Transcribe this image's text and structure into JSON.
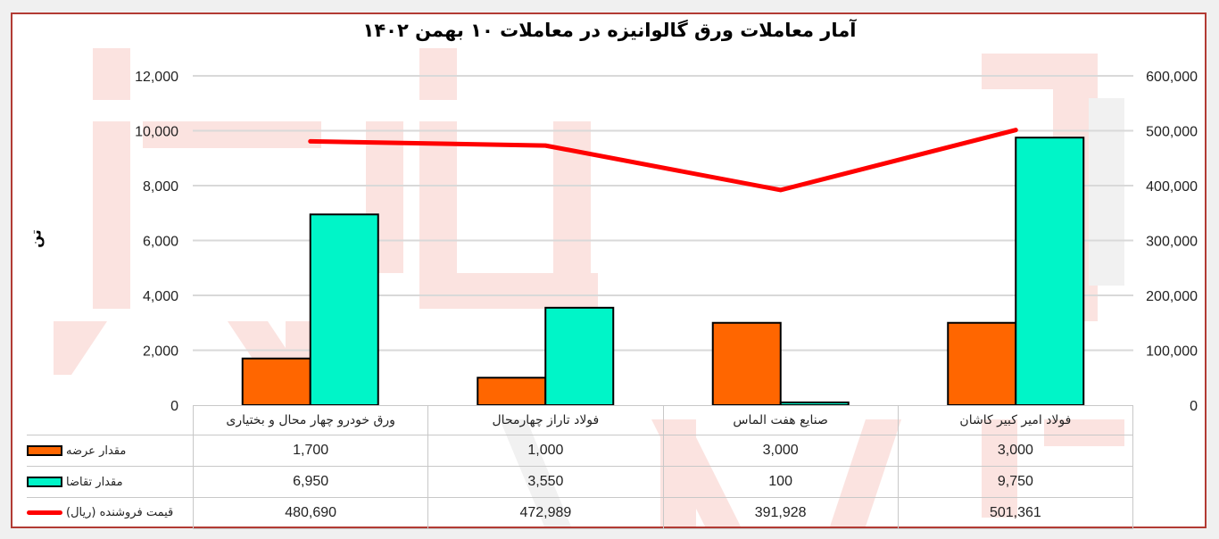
{
  "title": "آمار معاملات ورق گالوانیزه در معاملات ۱۰ بهمن ۱۴۰۲",
  "y_axis_label": "تن",
  "colors": {
    "supply": "#ff6600",
    "demand": "#00f5c8",
    "price": "#ff0000",
    "frame_border": "#b23b34",
    "gridline": "#d9d9d9"
  },
  "legend": [
    {
      "key": "supply",
      "label": "مقدار عرضه",
      "icon": "orange-bar-swatch"
    },
    {
      "key": "demand",
      "label": "مقدار تقاضا",
      "icon": "teal-bar-swatch"
    },
    {
      "key": "price",
      "label": "قیمت فروشنده (ریال)",
      "icon": "red-line-swatch"
    }
  ],
  "table": {
    "headers": [
      "ورق خودرو چهار محال و بختیاری",
      "فولاد تاراز چهارمحال",
      "صنایع هفت الماس",
      "فولاد امیر کبیر کاشان"
    ],
    "supply": [
      "1,700",
      "1,000",
      "3,000",
      "3,000"
    ],
    "demand": [
      "6,950",
      "3,550",
      "100",
      "9,750"
    ],
    "price": [
      "480,690",
      "472,989",
      "391,928",
      "501,361"
    ]
  },
  "left_axis_ticks": [
    "0",
    "2,000",
    "4,000",
    "6,000",
    "8,000",
    "10,000",
    "12,000"
  ],
  "right_axis_ticks": [
    "0",
    "100,000",
    "200,000",
    "300,000",
    "400,000",
    "500,000",
    "600,000"
  ],
  "chart_data": {
    "type": "bar",
    "title": "آمار معاملات ورق گالوانیزه در معاملات ۱۰ بهمن ۱۴۰۲",
    "categories": [
      "ورق خودرو چهار محال و بختیاری",
      "فولاد تاراز چهارمحال",
      "صنایع هفت الماس",
      "فولاد امیر کبیر کاشان"
    ],
    "series": [
      {
        "name": "مقدار عرضه",
        "type": "bar",
        "axis": "left",
        "color": "#ff6600",
        "values": [
          1700,
          1000,
          3000,
          3000
        ]
      },
      {
        "name": "مقدار تقاضا",
        "type": "bar",
        "axis": "left",
        "color": "#00f5c8",
        "values": [
          6950,
          3550,
          100,
          9750
        ]
      },
      {
        "name": "قیمت فروشنده (ریال)",
        "type": "line",
        "axis": "right",
        "color": "#ff0000",
        "values": [
          480690,
          472989,
          391928,
          501361
        ]
      }
    ],
    "xlabel": "",
    "ylabel": "تن",
    "ylim": [
      0,
      12000
    ],
    "y2lim": [
      0,
      600000
    ],
    "yticks": [
      0,
      2000,
      4000,
      6000,
      8000,
      10000,
      12000
    ],
    "y2ticks": [
      0,
      100000,
      200000,
      300000,
      400000,
      500000,
      600000
    ],
    "grid": true,
    "legend_position": "data-table-left"
  }
}
